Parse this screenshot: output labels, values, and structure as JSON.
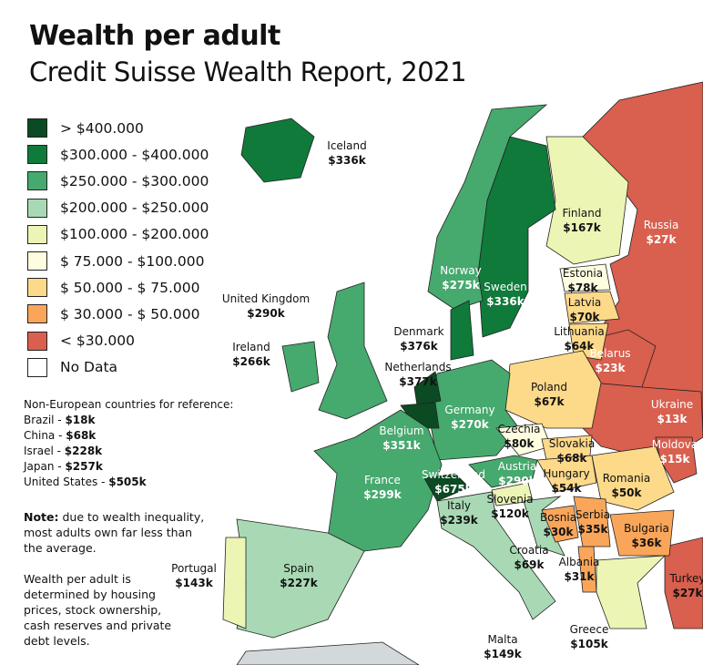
{
  "title": "Wealth per adult",
  "subtitle": "Credit Suisse Wealth Report, 2021",
  "legend": [
    {
      "label": "> $400.000",
      "color": "#0b4a22"
    },
    {
      "label": "$300.000 - $400.000",
      "color": "#0f7a3a"
    },
    {
      "label": "$250.000 - $300.000",
      "color": "#46a96e"
    },
    {
      "label": "$200.000 - $250.000",
      "color": "#a8d9b4"
    },
    {
      "label": "$100.000 - $200.000",
      "color": "#edf5b5"
    },
    {
      "label": "$ 75.000 - $100.000",
      "color": "#fffde0"
    },
    {
      "label": "$ 50.000 - $ 75.000",
      "color": "#fdd98a"
    },
    {
      "label": "$ 30.000 - $ 50.000",
      "color": "#f9a65a"
    },
    {
      "label": "< $30.000",
      "color": "#d95f4e"
    },
    {
      "label": "No Data",
      "color": "#ffffff"
    }
  ],
  "reference": {
    "heading": "Non-European countries for reference:",
    "items": [
      {
        "name": "Brazil - ",
        "value": "$18k"
      },
      {
        "name": "China - ",
        "value": "$68k"
      },
      {
        "name": "Israel - ",
        "value": "$228k"
      },
      {
        "name": "Japan - ",
        "value": "$257k"
      },
      {
        "name": "United States - ",
        "value": "$505k"
      }
    ]
  },
  "note": {
    "bold": "Note:",
    "text": " due to wealth inequality, most adults own far less than the average."
  },
  "note2": "Wealth per adult is determined by housing prices, stock ownership, cash reserves and private debt levels.",
  "countries": [
    {
      "name": "Iceland",
      "value": "$336k"
    },
    {
      "name": "Norway",
      "value": "$275k"
    },
    {
      "name": "Sweden",
      "value": "$336k"
    },
    {
      "name": "Finland",
      "value": "$167k"
    },
    {
      "name": "Russia",
      "value": "$27k"
    },
    {
      "name": "Estonia",
      "value": "$78k"
    },
    {
      "name": "Latvia",
      "value": "$70k"
    },
    {
      "name": "Lithuania",
      "value": "$64k"
    },
    {
      "name": "Belarus",
      "value": "$23k"
    },
    {
      "name": "Poland",
      "value": "$67k"
    },
    {
      "name": "Ukraine",
      "value": "$13k"
    },
    {
      "name": "Moldova",
      "value": "$15k"
    },
    {
      "name": "Romania",
      "value": "$50k"
    },
    {
      "name": "Bulgaria",
      "value": "$36k"
    },
    {
      "name": "Turkey",
      "value": "$27k"
    },
    {
      "name": "Greece",
      "value": "$105k"
    },
    {
      "name": "Albania",
      "value": "$31k"
    },
    {
      "name": "Serbia",
      "value": "$35k"
    },
    {
      "name": "Bosnia",
      "value": "$30k"
    },
    {
      "name": "Croatia",
      "value": "$69k"
    },
    {
      "name": "Slovenia",
      "value": "$120k"
    },
    {
      "name": "Hungary",
      "value": "$54k"
    },
    {
      "name": "Slovakia",
      "value": "$68k"
    },
    {
      "name": "Czechia",
      "value": "$80k"
    },
    {
      "name": "Austria",
      "value": "$290k"
    },
    {
      "name": "Switzerland",
      "value": "$675k"
    },
    {
      "name": "Italy",
      "value": "$239k"
    },
    {
      "name": "Germany",
      "value": "$270k"
    },
    {
      "name": "Belgium",
      "value": "$351k"
    },
    {
      "name": "Netherlands",
      "value": "$377k"
    },
    {
      "name": "Denmark",
      "value": "$376k"
    },
    {
      "name": "France",
      "value": "$299k"
    },
    {
      "name": "Spain",
      "value": "$227k"
    },
    {
      "name": "Portugal",
      "value": "$143k"
    },
    {
      "name": "United Kingdom",
      "value": "$290k"
    },
    {
      "name": "Ireland",
      "value": "$266k"
    },
    {
      "name": "Malta",
      "value": "$149k"
    }
  ]
}
